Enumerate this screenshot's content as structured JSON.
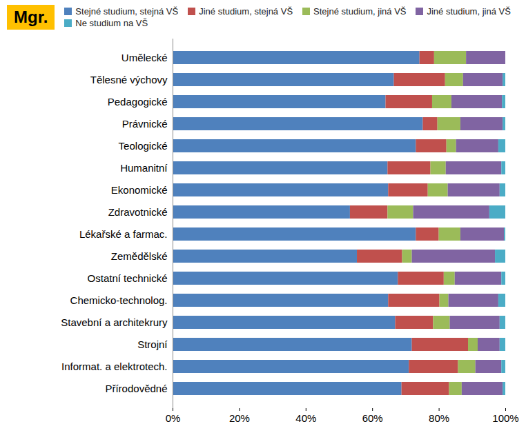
{
  "chart_data": {
    "type": "bar",
    "orientation": "horizontal",
    "stacked": true,
    "grid": false,
    "legend": "top",
    "annotations": [
      "Mgr."
    ],
    "categories": [
      "Umělecké",
      "Tělesné výchovy",
      "Pedagogické",
      "Právnické",
      "Teologické",
      "Humanitní",
      "Ekonomické",
      "Zdravotnické",
      "Lékařské a farmac.",
      "Zemědělské",
      "Ostatní technické",
      "Chemicko-technolog.",
      "Stavební a architekrury",
      "Strojní",
      "Informat. a elektrotech.",
      "Přírodovědné"
    ],
    "series": [
      {
        "name": "Stejné studium, stejná VŠ",
        "color": "#4F81BD",
        "values": [
          74.2,
          66.5,
          64.0,
          75.2,
          73.1,
          64.6,
          64.8,
          53.3,
          73.1,
          55.4,
          67.7,
          64.8,
          66.9,
          71.9,
          71.0,
          68.8
        ]
      },
      {
        "name": "Jiné studium, stejná VŠ",
        "color": "#C0504D",
        "values": [
          4.4,
          15.4,
          14.0,
          4.4,
          9.2,
          12.9,
          11.9,
          11.3,
          6.9,
          13.6,
          13.8,
          15.4,
          11.4,
          16.9,
          14.8,
          14.3
        ]
      },
      {
        "name": "Stejné studium, jiná VŠ",
        "color": "#9BBB59",
        "values": [
          9.6,
          5.4,
          5.8,
          6.9,
          2.9,
          4.6,
          6.0,
          7.7,
          6.5,
          2.9,
          3.3,
          2.7,
          5.0,
          2.9,
          5.2,
          3.8
        ]
      },
      {
        "name": "Jiné studium, jiná VŠ",
        "color": "#8064A2",
        "values": [
          11.8,
          11.9,
          15.2,
          12.7,
          12.7,
          16.7,
          15.6,
          22.9,
          13.1,
          25.0,
          14.0,
          15.0,
          15.0,
          6.6,
          7.8,
          12.3
        ]
      },
      {
        "name": "Ne studium na VŠ",
        "color": "#4BACC6",
        "values": [
          0.0,
          0.8,
          1.0,
          0.8,
          2.1,
          1.2,
          1.7,
          4.8,
          0.4,
          3.1,
          1.2,
          2.1,
          1.7,
          1.7,
          1.2,
          0.8
        ]
      }
    ],
    "xlim": [
      0,
      100
    ],
    "xticks": [
      {
        "value": 0,
        "label": "0%"
      },
      {
        "value": 20,
        "label": "20%"
      },
      {
        "value": 40,
        "label": "40%"
      },
      {
        "value": 60,
        "label": "60%"
      },
      {
        "value": 80,
        "label": "80%"
      },
      {
        "value": 100,
        "label": "100%"
      }
    ]
  }
}
